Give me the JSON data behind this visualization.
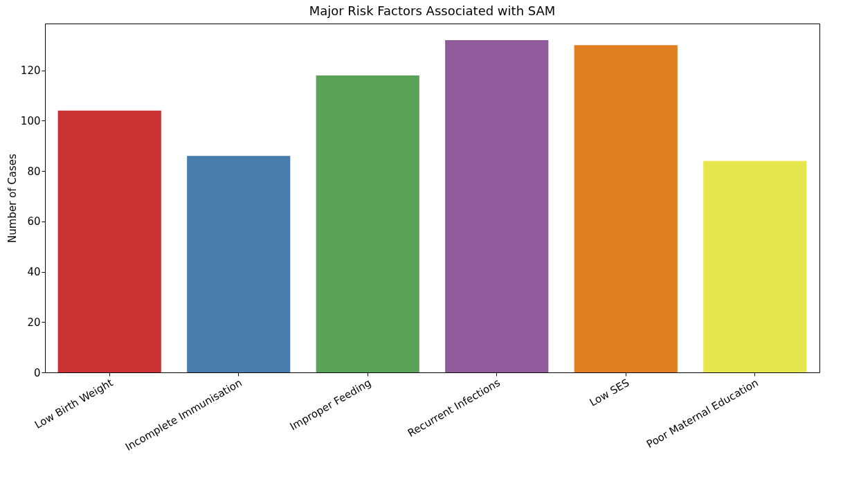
{
  "chart_data": {
    "type": "bar",
    "title": "Major Risk Factors Associated with SAM",
    "ylabel": "Number of Cases",
    "categories": [
      "Low Birth Weight",
      "Incomplete Immunisation",
      "Improper Feeding",
      "Recurrent Infections",
      "Low SES",
      "Poor Maternal Education"
    ],
    "values": [
      104,
      86,
      118,
      132,
      130,
      84
    ],
    "colors": [
      "#ca3234",
      "#477cab",
      "#59a257",
      "#8f5b9a",
      "#e07f1f",
      "#e6e64e"
    ],
    "ylim": [
      0,
      138.6
    ],
    "yticks": [
      0,
      20,
      40,
      60,
      80,
      100,
      120
    ],
    "grid": false
  }
}
